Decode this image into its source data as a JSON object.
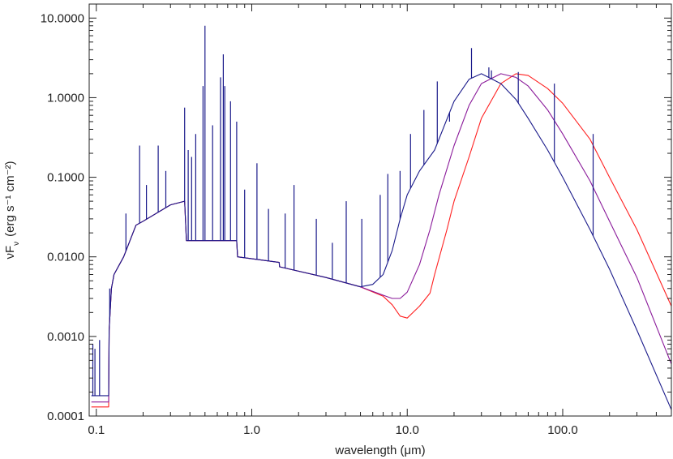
{
  "chart_data": {
    "type": "line",
    "xlabel": "wavelength (μm)",
    "ylabel": "νF",
    "ylabel_subscript": "ν",
    "ylabel_units": "(erg s⁻¹ cm⁻²)",
    "x_scale": "log",
    "y_scale": "log",
    "xlim": [
      0.09,
      500
    ],
    "ylim": [
      0.0001,
      15
    ],
    "x_ticks": [
      {
        "value": 0.1,
        "label": "0.1"
      },
      {
        "value": 1,
        "label": "1.0"
      },
      {
        "value": 10,
        "label": "10.0"
      },
      {
        "value": 100,
        "label": "100.0"
      }
    ],
    "y_ticks": [
      {
        "value": 0.0001,
        "label": "0.0001"
      },
      {
        "value": 0.001,
        "label": "0.0010"
      },
      {
        "value": 0.01,
        "label": "0.0100"
      },
      {
        "value": 0.1,
        "label": "0.1000"
      },
      {
        "value": 1,
        "label": "1.0000"
      },
      {
        "value": 10,
        "label": "10.0000"
      }
    ],
    "grid": false,
    "legend": "none",
    "series": [
      {
        "color": "#ff2020",
        "x": [
          0.093,
          0.1,
          0.11,
          0.12,
          0.121,
          0.125,
          0.13,
          0.15,
          0.18,
          0.2,
          0.3,
          0.37,
          0.38,
          0.5,
          0.8,
          0.81,
          1.5,
          1.51,
          3,
          5,
          7,
          8,
          9,
          10,
          12,
          14,
          15,
          18,
          20,
          25,
          30,
          40,
          50,
          60,
          80,
          100,
          150,
          200,
          300,
          500
        ],
        "y": [
          0.00013,
          0.00013,
          0.00013,
          0.00013,
          0.0012,
          0.004,
          0.006,
          0.01,
          0.025,
          0.028,
          0.045,
          0.05,
          0.016,
          0.016,
          0.016,
          0.01,
          0.0085,
          0.0075,
          0.0055,
          0.0042,
          0.0032,
          0.0025,
          0.0018,
          0.0017,
          0.0024,
          0.0035,
          0.006,
          0.022,
          0.05,
          0.18,
          0.55,
          1.5,
          2.0,
          1.9,
          1.3,
          0.85,
          0.3,
          0.1,
          0.022,
          0.0024
        ]
      },
      {
        "color": "#8a1a9a",
        "x": [
          0.093,
          0.1,
          0.11,
          0.12,
          0.121,
          0.125,
          0.13,
          0.15,
          0.18,
          0.2,
          0.3,
          0.37,
          0.38,
          0.5,
          0.8,
          0.81,
          1.5,
          1.51,
          3,
          5,
          7,
          8,
          9,
          10,
          12,
          14,
          16,
          20,
          25,
          30,
          40,
          50,
          60,
          80,
          100,
          150,
          200,
          300,
          500
        ],
        "y": [
          0.00015,
          0.00015,
          0.00015,
          0.00015,
          0.0012,
          0.004,
          0.006,
          0.01,
          0.025,
          0.028,
          0.045,
          0.05,
          0.016,
          0.016,
          0.016,
          0.01,
          0.0085,
          0.0075,
          0.0055,
          0.0042,
          0.0033,
          0.003,
          0.003,
          0.0036,
          0.008,
          0.022,
          0.06,
          0.25,
          0.8,
          1.5,
          2.0,
          1.8,
          1.4,
          0.7,
          0.35,
          0.09,
          0.028,
          0.0055,
          0.00045
        ]
      },
      {
        "color": "#1a1a8a",
        "x": [
          0.093,
          0.1,
          0.11,
          0.12,
          0.121,
          0.125,
          0.13,
          0.15,
          0.18,
          0.2,
          0.3,
          0.37,
          0.38,
          0.5,
          0.8,
          0.81,
          1.5,
          1.51,
          3,
          5,
          6,
          7,
          8,
          9,
          10,
          12,
          15,
          20,
          25,
          30,
          40,
          50,
          60,
          80,
          100,
          150,
          200,
          300,
          500
        ],
        "y": [
          0.00018,
          0.00018,
          0.00018,
          0.00018,
          0.0012,
          0.004,
          0.006,
          0.01,
          0.025,
          0.028,
          0.045,
          0.05,
          0.016,
          0.016,
          0.016,
          0.01,
          0.0085,
          0.0075,
          0.0055,
          0.0042,
          0.0045,
          0.006,
          0.012,
          0.03,
          0.06,
          0.12,
          0.22,
          0.9,
          1.7,
          2.0,
          1.5,
          0.95,
          0.55,
          0.22,
          0.1,
          0.022,
          0.007,
          0.0012,
          0.00012
        ]
      }
    ],
    "emission_lines": [
      {
        "x": 0.095,
        "y": 0.0008
      },
      {
        "x": 0.098,
        "y": 0.0007
      },
      {
        "x": 0.105,
        "y": 0.0009
      },
      {
        "x": 0.122,
        "y": 0.004
      },
      {
        "x": 0.155,
        "y": 0.035
      },
      {
        "x": 0.19,
        "y": 0.25
      },
      {
        "x": 0.21,
        "y": 0.08
      },
      {
        "x": 0.25,
        "y": 0.25
      },
      {
        "x": 0.28,
        "y": 0.12
      },
      {
        "x": 0.37,
        "y": 0.75
      },
      {
        "x": 0.39,
        "y": 0.22
      },
      {
        "x": 0.41,
        "y": 0.18
      },
      {
        "x": 0.436,
        "y": 0.35
      },
      {
        "x": 0.486,
        "y": 1.4
      },
      {
        "x": 0.5,
        "y": 8
      },
      {
        "x": 0.56,
        "y": 0.45
      },
      {
        "x": 0.63,
        "y": 1.8
      },
      {
        "x": 0.656,
        "y": 3.5
      },
      {
        "x": 0.67,
        "y": 1.4
      },
      {
        "x": 0.73,
        "y": 0.9
      },
      {
        "x": 0.8,
        "y": 0.5
      },
      {
        "x": 0.9,
        "y": 0.07
      },
      {
        "x": 1.08,
        "y": 0.15
      },
      {
        "x": 1.28,
        "y": 0.04
      },
      {
        "x": 1.64,
        "y": 0.035
      },
      {
        "x": 1.87,
        "y": 0.08
      },
      {
        "x": 2.6,
        "y": 0.03
      },
      {
        "x": 3.3,
        "y": 0.015
      },
      {
        "x": 4.05,
        "y": 0.05
      },
      {
        "x": 5.1,
        "y": 0.03
      },
      {
        "x": 6.7,
        "y": 0.06
      },
      {
        "x": 7.5,
        "y": 0.11
      },
      {
        "x": 8.99,
        "y": 0.12
      },
      {
        "x": 10.5,
        "y": 0.35
      },
      {
        "x": 12.8,
        "y": 0.7
      },
      {
        "x": 15.6,
        "y": 1.6
      },
      {
        "x": 18.7,
        "y": 0.5
      },
      {
        "x": 25.9,
        "y": 4.2
      },
      {
        "x": 33.5,
        "y": 2.4
      },
      {
        "x": 34.8,
        "y": 2.2
      },
      {
        "x": 51.8,
        "y": 2.1
      },
      {
        "x": 88.4,
        "y": 1.5
      },
      {
        "x": 157,
        "y": 0.35
      }
    ]
  }
}
